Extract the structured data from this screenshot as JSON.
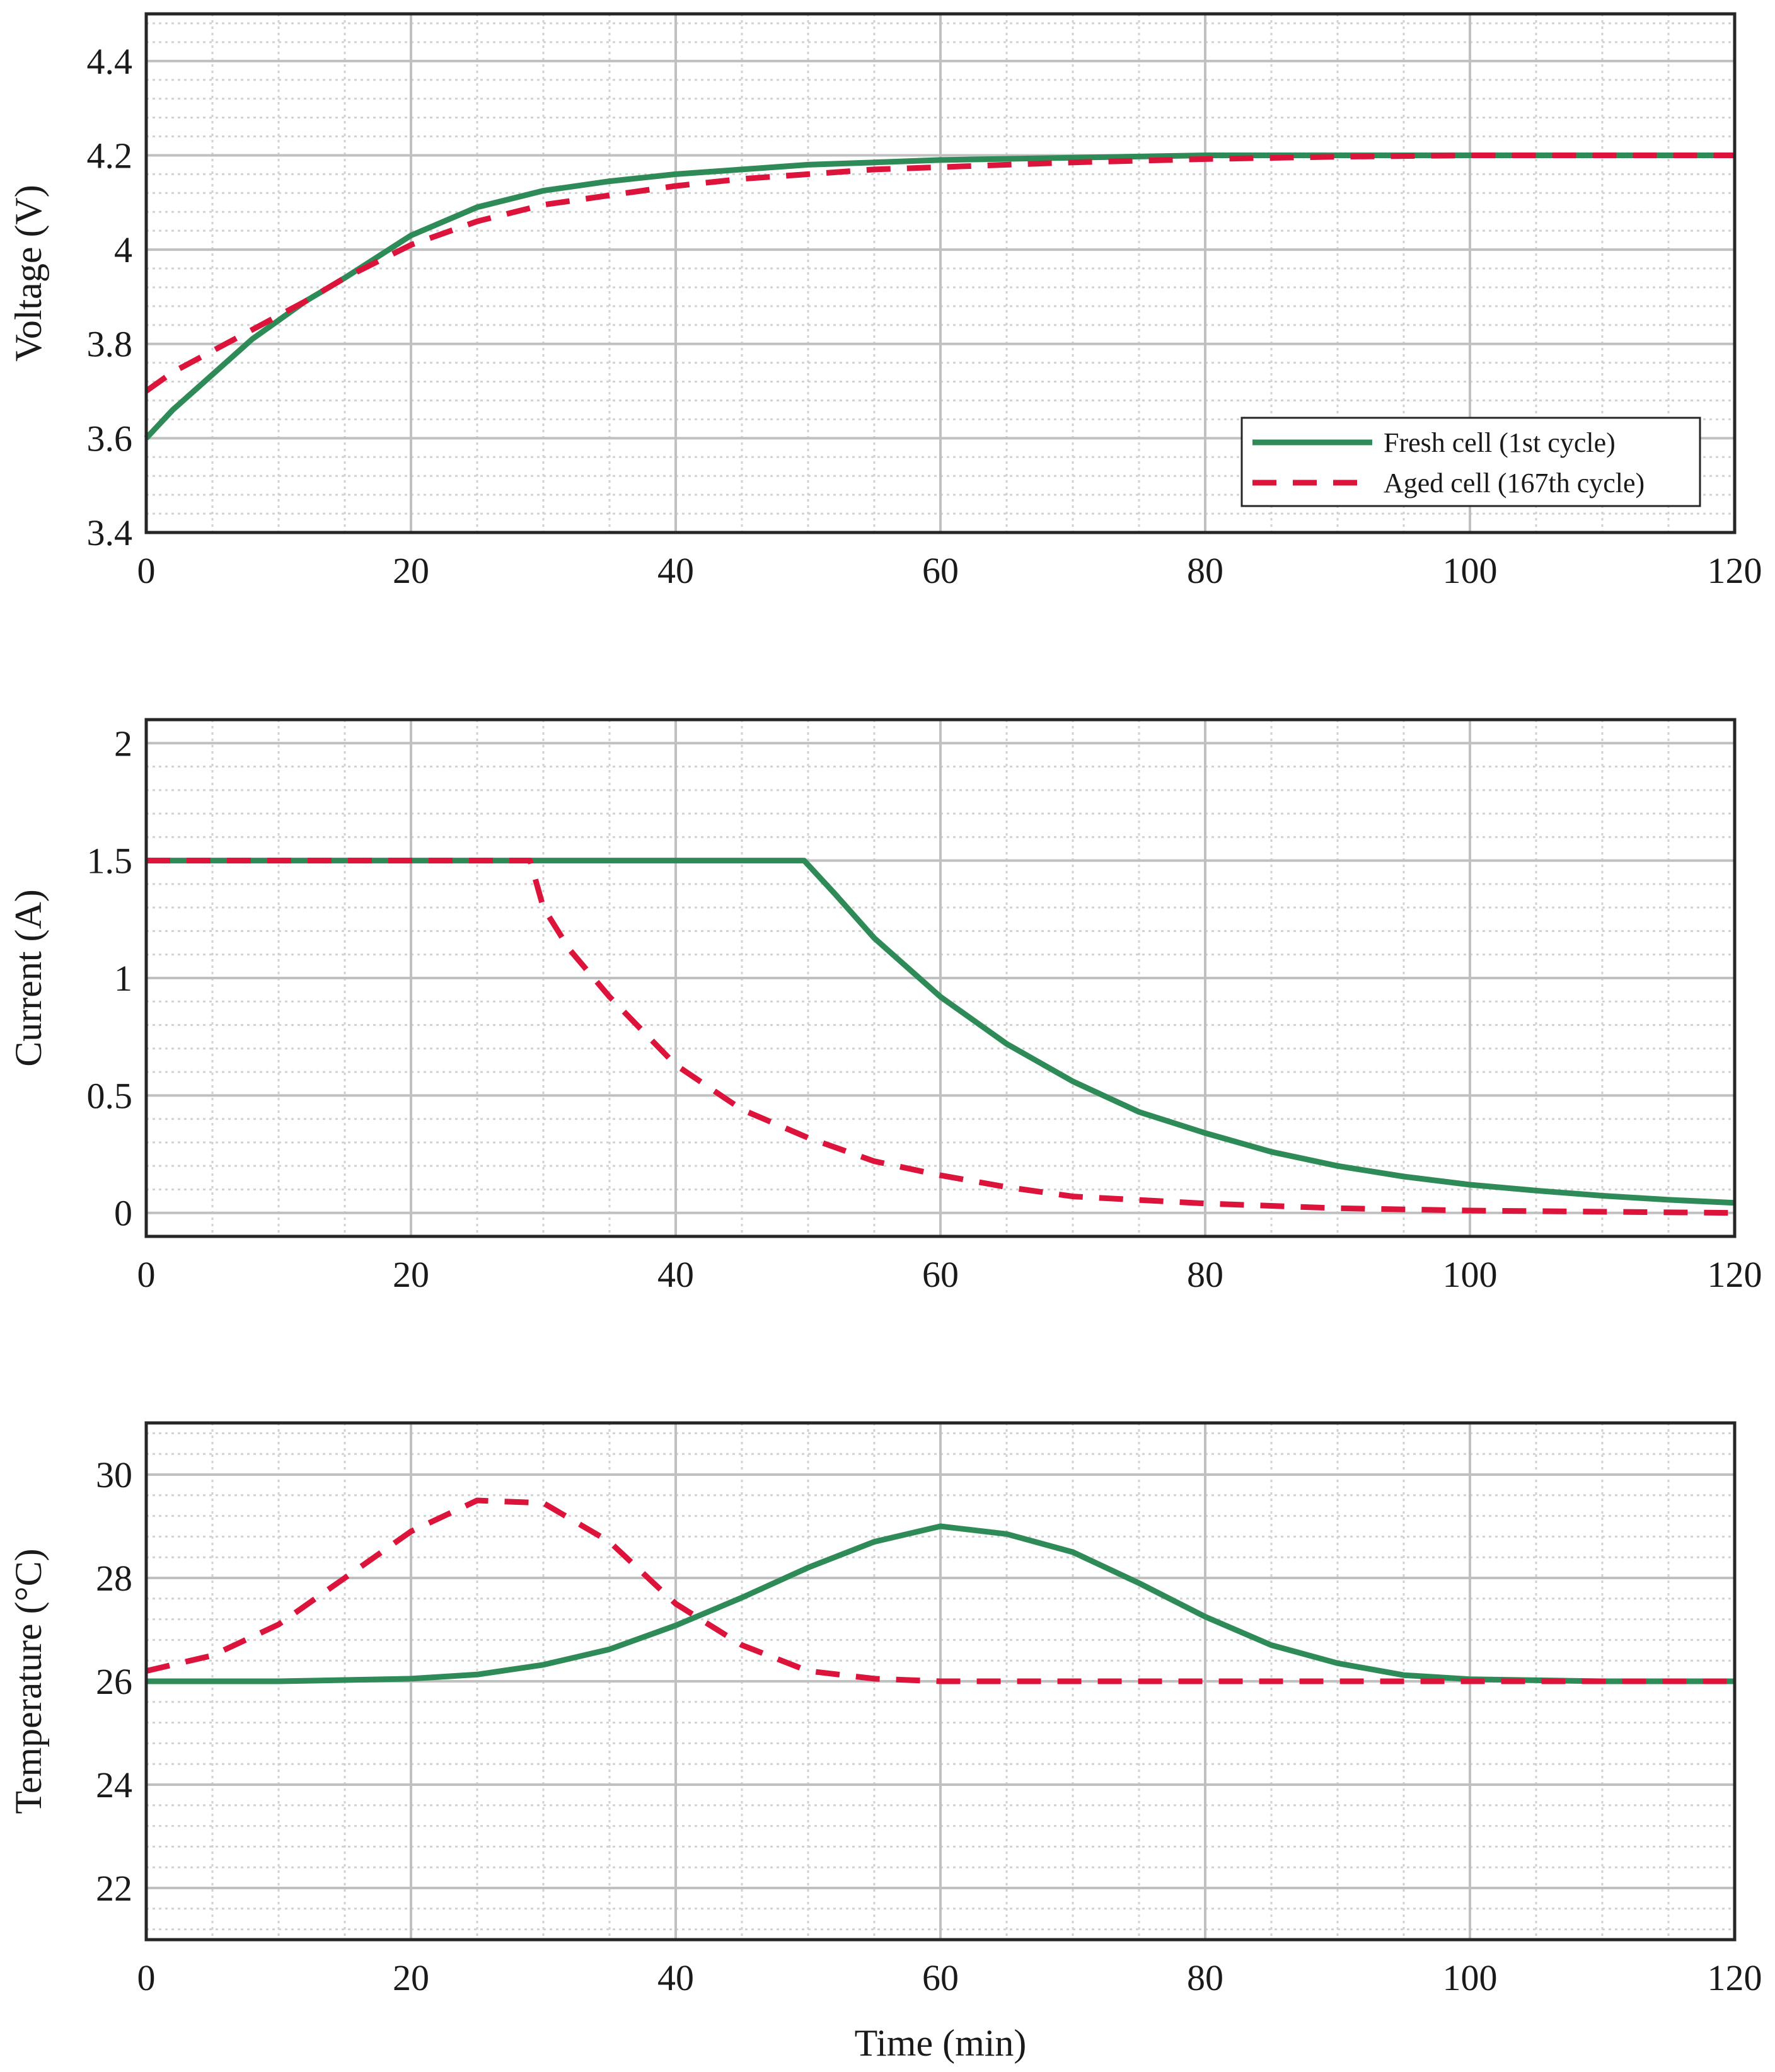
{
  "chart_data": [
    {
      "type": "line",
      "id": "voltage",
      "title": "",
      "xlabel": "",
      "ylabel": "Voltage (V)",
      "xlim": [
        0,
        120
      ],
      "ylim": [
        3.4,
        4.5
      ],
      "xticks": [
        0,
        20,
        40,
        60,
        80,
        100,
        120
      ],
      "xtick_labels": [
        "0",
        "20",
        "40",
        "60",
        "80",
        "100",
        "120"
      ],
      "yticks": [
        3.4,
        3.6,
        3.8,
        4.0,
        4.2,
        4.4
      ],
      "ytick_labels": [
        "3.4",
        "3.6",
        "3.8",
        "4",
        "4.2",
        "4.4"
      ],
      "grid": true,
      "legend": {
        "position": "bottom-right",
        "entries": [
          "Fresh cell (1st cycle)",
          "Aged cell (167th cycle)"
        ]
      },
      "series": [
        {
          "name": "Fresh cell (1st cycle)",
          "x": [
            0,
            2,
            4,
            6,
            8,
            10,
            12,
            15,
            20,
            25,
            30,
            35,
            40,
            45,
            50,
            55,
            60,
            70,
            80,
            90,
            100,
            110,
            120
          ],
          "y": [
            3.6,
            3.66,
            3.71,
            3.76,
            3.81,
            3.85,
            3.89,
            3.94,
            4.03,
            4.09,
            4.125,
            4.145,
            4.16,
            4.17,
            4.18,
            4.185,
            4.19,
            4.195,
            4.2,
            4.2,
            4.2,
            4.2,
            4.2
          ]
        },
        {
          "name": "Aged cell (167th cycle)",
          "x": [
            0,
            2,
            4,
            6,
            8,
            10,
            12,
            15,
            20,
            25,
            30,
            35,
            40,
            45,
            50,
            55,
            60,
            70,
            80,
            90,
            100,
            110,
            120
          ],
          "y": [
            3.7,
            3.74,
            3.77,
            3.8,
            3.83,
            3.86,
            3.89,
            3.94,
            4.01,
            4.06,
            4.095,
            4.115,
            4.135,
            4.15,
            4.16,
            4.17,
            4.175,
            4.185,
            4.192,
            4.197,
            4.2,
            4.2,
            4.2
          ]
        }
      ]
    },
    {
      "type": "line",
      "id": "current",
      "title": "",
      "xlabel": "",
      "ylabel": "Current (A)",
      "xlim": [
        0,
        120
      ],
      "ylim": [
        -0.1,
        2.1
      ],
      "xticks": [
        0,
        20,
        40,
        60,
        80,
        100,
        120
      ],
      "xtick_labels": [
        "0",
        "20",
        "40",
        "60",
        "80",
        "100",
        "120"
      ],
      "yticks": [
        0,
        0.5,
        1,
        1.5,
        2
      ],
      "ytick_labels": [
        "0",
        "0.5",
        "1",
        "1.5",
        "2"
      ],
      "grid": true,
      "series": [
        {
          "name": "Fresh cell (1st cycle)",
          "x": [
            0,
            49.7,
            52,
            55,
            60,
            65,
            70,
            75,
            80,
            85,
            90,
            95,
            100,
            105,
            110,
            115,
            120
          ],
          "y": [
            1.5,
            1.5,
            1.36,
            1.17,
            0.92,
            0.72,
            0.56,
            0.43,
            0.34,
            0.26,
            0.2,
            0.155,
            0.12,
            0.095,
            0.073,
            0.056,
            0.043
          ]
        },
        {
          "name": "Aged cell (167th cycle)",
          "x": [
            0,
            29,
            30,
            32,
            35,
            40,
            45,
            50,
            55,
            60,
            65,
            70,
            80,
            90,
            100,
            110,
            120
          ],
          "y": [
            1.5,
            1.5,
            1.3,
            1.12,
            0.92,
            0.63,
            0.44,
            0.32,
            0.22,
            0.16,
            0.11,
            0.07,
            0.04,
            0.02,
            0.01,
            0.005,
            0.0
          ]
        }
      ]
    },
    {
      "type": "line",
      "id": "temperature",
      "title": "",
      "xlabel": "Time (min)",
      "ylabel": "Temperature (°C)",
      "xlim": [
        0,
        120
      ],
      "ylim": [
        21,
        31
      ],
      "xticks": [
        0,
        20,
        40,
        60,
        80,
        100,
        120
      ],
      "xtick_labels": [
        "0",
        "20",
        "40",
        "60",
        "80",
        "100",
        "120"
      ],
      "yticks": [
        22,
        24,
        26,
        28,
        30
      ],
      "ytick_labels": [
        "22",
        "24",
        "26",
        "28",
        "30"
      ],
      "grid": true,
      "series": [
        {
          "name": "Fresh cell (1st cycle)",
          "x": [
            0,
            10,
            20,
            25,
            30,
            35,
            40,
            45,
            50,
            55,
            60,
            65,
            70,
            75,
            80,
            85,
            90,
            95,
            100,
            110,
            120
          ],
          "y": [
            26.0,
            26.0,
            26.05,
            26.13,
            26.32,
            26.62,
            27.08,
            27.62,
            28.2,
            28.7,
            29.0,
            28.85,
            28.5,
            27.9,
            27.25,
            26.7,
            26.35,
            26.12,
            26.04,
            26.0,
            26.0
          ]
        },
        {
          "name": "Aged cell (167th cycle)",
          "x": [
            0,
            5,
            10,
            15,
            20,
            25,
            30,
            35,
            40,
            45,
            50,
            55,
            60,
            70,
            80,
            90,
            100,
            110,
            120
          ],
          "y": [
            26.2,
            26.5,
            27.1,
            28.0,
            28.9,
            29.5,
            29.45,
            28.7,
            27.5,
            26.7,
            26.2,
            26.05,
            26.0,
            26.0,
            26.0,
            26.0,
            26.0,
            26.0,
            26.0
          ]
        }
      ]
    }
  ],
  "colors": {
    "fresh": "#2e8b57",
    "aged": "#dc143c",
    "grid_major": "#c0c0c0",
    "grid_minor": "#d2d2d2",
    "axes": "#262626"
  }
}
